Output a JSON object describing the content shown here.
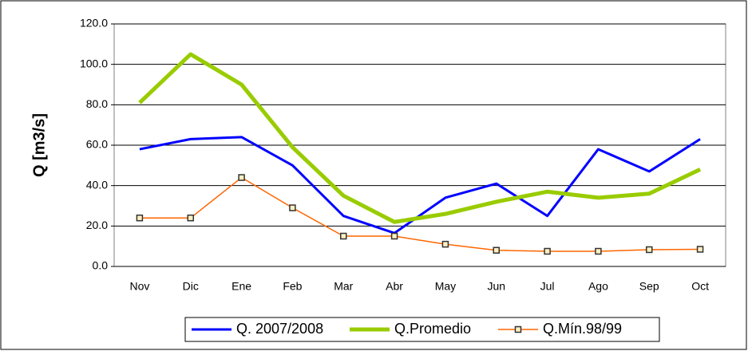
{
  "chart_data": {
    "type": "line",
    "y_label": "Q [m3/s]",
    "categories": [
      "Nov",
      "Dic",
      "Ene",
      "Feb",
      "Mar",
      "Abr",
      "May",
      "Jun",
      "Jul",
      "Ago",
      "Sep",
      "Oct"
    ],
    "series": [
      {
        "name": "Q. 2007/2008",
        "color": "#0000ff",
        "values": [
          58,
          63,
          64,
          50,
          25,
          16.5,
          34,
          41,
          25,
          58,
          47,
          63
        ]
      },
      {
        "name": "Q.Promedio",
        "color": "#99cc00",
        "values": [
          81,
          105,
          90,
          59,
          35,
          22,
          26,
          32,
          37,
          34,
          36,
          48
        ]
      },
      {
        "name": "Q.Mín.98/99",
        "color": "#ff6600",
        "values": [
          24,
          24,
          44,
          29,
          15,
          15,
          11,
          8,
          7.5,
          7.5,
          8.3,
          8.5
        ]
      }
    ],
    "ylim": [
      0,
      120
    ],
    "yticks": [
      {
        "value": 0,
        "label": "0.0"
      },
      {
        "value": 20,
        "label": "20.0"
      },
      {
        "value": 40,
        "label": "40.0"
      },
      {
        "value": 60,
        "label": "60.0"
      },
      {
        "value": 80,
        "label": "80.0"
      },
      {
        "value": 100,
        "label": "100.0"
      },
      {
        "value": 120,
        "label": "120.0"
      }
    ],
    "grid": true,
    "legend": "bottom"
  }
}
